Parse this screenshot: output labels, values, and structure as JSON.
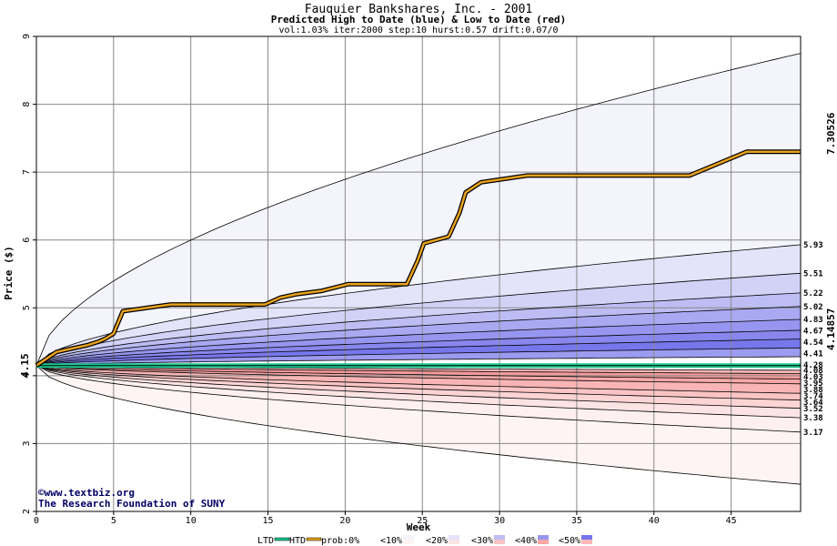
{
  "chart_data": {
    "type": "area",
    "title": "Fauquier Bankshares, Inc. - 2001",
    "subtitle": "Predicted High to Date (blue) &  Low to Date (red)",
    "params": "vol:1.03% iter:2000 step:10 hurst:0.57 drift:0.07/0",
    "xlabel": "Week",
    "ylabel": "Price ($)",
    "xlim": [
      0,
      49.5
    ],
    "ylim": [
      2,
      9
    ],
    "x_ticks": [
      "0",
      "5",
      "10",
      "15",
      "20",
      "25",
      "30",
      "35",
      "40",
      "45"
    ],
    "y_ticks": [
      "2",
      "3",
      "4",
      "5",
      "6",
      "7",
      "8",
      "9"
    ],
    "start_price": 4.15,
    "start_label": "4.15",
    "actual_low_label": "4.14857",
    "actual_high_label": "7.30526",
    "upper_band_ends": [
      8.75,
      5.93,
      5.51,
      5.22,
      5.02,
      4.83,
      4.67,
      4.54,
      4.41,
      4.28
    ],
    "upper_band_labels": [
      "5.93",
      "5.51",
      "5.22",
      "5.02",
      "4.83",
      "4.67",
      "4.54",
      "4.41",
      "4.28"
    ],
    "lower_band_ends": [
      4.08,
      4.03,
      3.95,
      3.88,
      3.74,
      3.64,
      3.52,
      3.38,
      3.17,
      2.4
    ],
    "lower_band_labels": [
      "4.08",
      "4.03",
      "3.95",
      "3.88",
      "3.74",
      "3.64",
      "3.52",
      "3.38",
      "3.17"
    ],
    "htd_path": {
      "x": [
        0,
        1.3,
        2.3,
        3.3,
        4.0,
        4.5,
        5.0,
        5.6,
        8.7,
        14.8,
        15.8,
        16.8,
        18.5,
        20.2,
        24.0,
        24.4,
        24.7,
        25.1,
        26.7,
        27.4,
        27.8,
        28.8,
        31.8,
        42.3,
        46.0,
        49.5
      ],
      "y": [
        4.15,
        4.35,
        4.4,
        4.45,
        4.5,
        4.55,
        4.62,
        4.95,
        5.05,
        5.05,
        5.15,
        5.2,
        5.25,
        5.35,
        5.35,
        5.55,
        5.7,
        5.95,
        6.05,
        6.4,
        6.7,
        6.85,
        6.95,
        6.95,
        7.3,
        7.3
      ]
    },
    "ltd_value": 4.14857,
    "legend": [
      "LTD",
      "HTD",
      "prob:0%",
      "<10%",
      "<20%",
      "<30%",
      "<40%",
      "<50%"
    ]
  },
  "credit": {
    "line1": "www.textbiz.org",
    "line2": "The Research Foundation of SUNY"
  },
  "colors": {
    "upper_bands": [
      "#f4f4fd",
      "#e3e3fa",
      "#d2d2f7",
      "#bdbdf4",
      "#a9a9f2",
      "#9696f0",
      "#8787ee",
      "#7777ec",
      "#9b9bf0"
    ],
    "lower_bands": [
      "#fdb8b8",
      "#f59a9a",
      "#f7a7a7",
      "#f9b5b5",
      "#fbc4c4",
      "#fdd4d4",
      "#fde4e4",
      "#fef0f0",
      "#fff4f4"
    ],
    "htd": "#e8a21c",
    "ltd": "#19c890",
    "high_label": "#8a7a1a",
    "low_label": "#1a8a3a"
  }
}
